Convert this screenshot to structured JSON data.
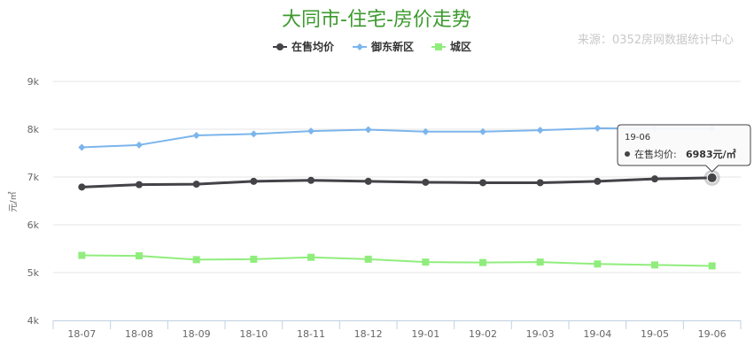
{
  "chart_data": {
    "type": "line",
    "title": "大同市-住宅-房价走势",
    "source": "来源：0352房网数据统计中心",
    "ylabel": "元/㎡",
    "ylim": [
      4000,
      9000
    ],
    "yticks": [
      "4k",
      "5k",
      "6k",
      "7k",
      "8k",
      "9k"
    ],
    "categories": [
      "18-07",
      "18-08",
      "18-09",
      "18-10",
      "18-11",
      "18-12",
      "19-01",
      "19-02",
      "19-03",
      "19-04",
      "19-05",
      "19-06"
    ],
    "legend_position": "top-center",
    "grid": true,
    "series": [
      {
        "name": "在售均价",
        "color": "#434348",
        "marker": "circle",
        "values": [
          6790,
          6840,
          6850,
          6910,
          6930,
          6910,
          6890,
          6880,
          6880,
          6910,
          6960,
          6983
        ]
      },
      {
        "name": "御东新区",
        "color": "#7cb5ec",
        "marker": "diamond",
        "values": [
          7620,
          7670,
          7870,
          7900,
          7960,
          7990,
          7950,
          7950,
          7980,
          8020,
          8010,
          8010
        ]
      },
      {
        "name": "城区",
        "color": "#90ed7d",
        "marker": "square",
        "values": [
          5360,
          5350,
          5270,
          5280,
          5320,
          5280,
          5220,
          5210,
          5220,
          5180,
          5160,
          5140
        ]
      }
    ],
    "tooltip": {
      "category": "19-06",
      "label": "在售均价:",
      "value": "6983元/㎡"
    }
  }
}
